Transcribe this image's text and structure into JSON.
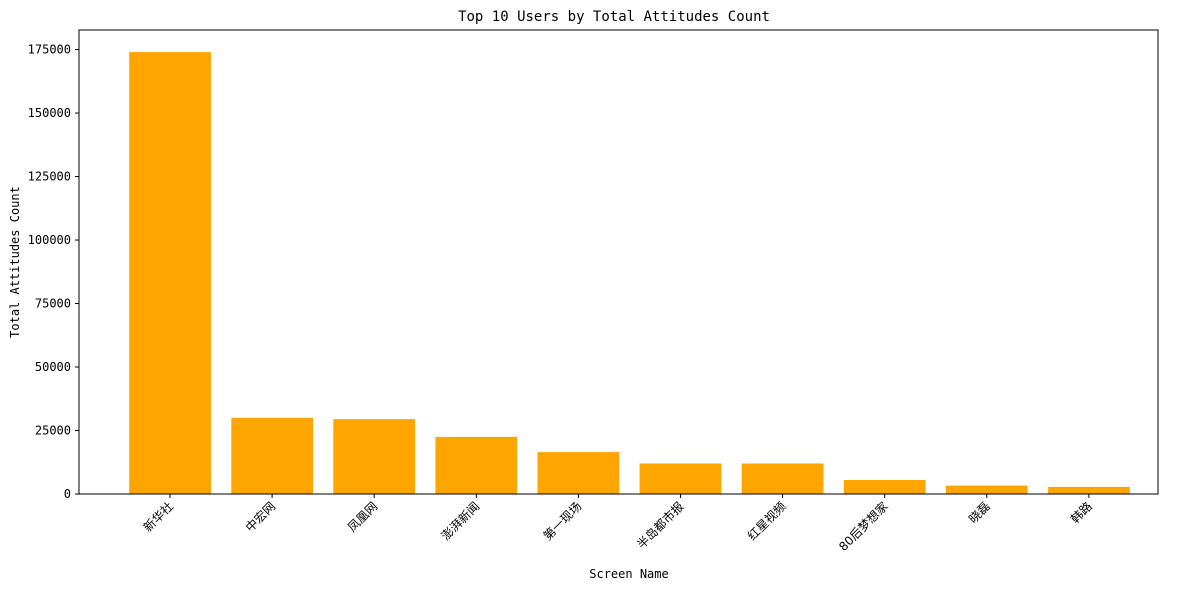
{
  "chart_data": {
    "type": "bar",
    "title": "Top 10 Users by Total Attitudes Count",
    "xlabel": "Screen Name",
    "ylabel": "Total Attitudes Count",
    "categories": [
      "新华社",
      "中宏网",
      "凤凰网",
      "澎湃新闻",
      "第一现场",
      "半岛都市报",
      "红星视频",
      "80后梦想家",
      "晓磊",
      "韩路"
    ],
    "values": [
      174000,
      30000,
      29500,
      22500,
      16500,
      12000,
      12000,
      5500,
      3300,
      2800
    ],
    "yticks": [
      0,
      25000,
      50000,
      75000,
      100000,
      125000,
      150000,
      175000
    ],
    "ylim": [
      0,
      182700
    ],
    "color": "#FFA500",
    "grid": false,
    "legend": "none"
  }
}
